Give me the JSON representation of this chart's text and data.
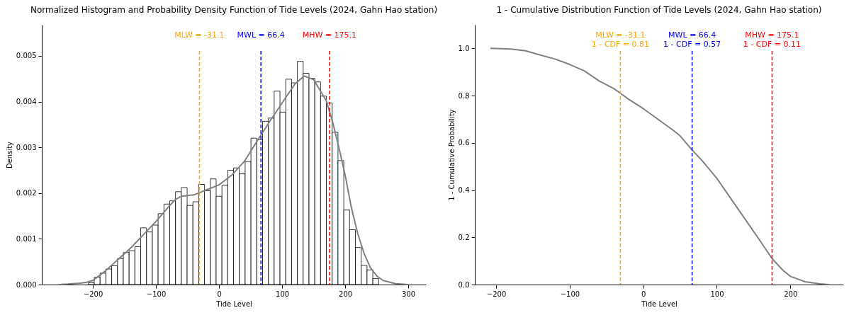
{
  "chart_data": [
    {
      "type": "histogram",
      "title": "Normalized Histogram and Probability Density Function of Tide Levels (2024, Gahn Hao station)",
      "xlabel": "Tide Level",
      "ylabel": "Density",
      "color": "#ffffff",
      "bins": [
        -207,
        -197.8,
        -188.6,
        -179.4,
        -170.2,
        -161,
        -151.8,
        -142.6,
        -133.4,
        -124.2,
        -115,
        -105.8,
        -96.6,
        -87.4,
        -78.2,
        -69,
        -59.8,
        -50.6,
        -41.4,
        -32.2,
        -23,
        -13.8,
        -4.6,
        4.6,
        13.8,
        23,
        32.2,
        41.4,
        50.6,
        59.8,
        69,
        78.2,
        87.4,
        96.6,
        105.8,
        115,
        124.2,
        133.4,
        142.6,
        151.8,
        161,
        170.2,
        179.4,
        188.6,
        197.8,
        207,
        216.2,
        225.4,
        234.6,
        243.8,
        253
      ],
      "values": [
        4e-05,
        0.00016,
        0.00025,
        0.00034,
        0.00041,
        0.00057,
        0.0007,
        0.00074,
        0.00083,
        0.00124,
        0.00115,
        0.0013,
        0.00155,
        0.00176,
        0.00183,
        0.00203,
        0.00212,
        0.00173,
        0.00181,
        0.00219,
        0.00205,
        0.00231,
        0.00193,
        0.00217,
        0.0025,
        0.00255,
        0.00242,
        0.00269,
        0.0032,
        0.00317,
        0.00357,
        0.00364,
        0.00423,
        0.00377,
        0.00449,
        0.00441,
        0.00488,
        0.00462,
        0.00451,
        0.00443,
        0.00412,
        0.00397,
        0.00333,
        0.00271,
        0.00163,
        0.0012,
        0.00081,
        0.00042,
        0.00032,
        0.00013
      ],
      "series": [
        {
          "type": "line",
          "color": "#808080",
          "x": [
            -255,
            -240,
            -220,
            -210,
            -200,
            -180,
            -160,
            -140,
            -120,
            -100,
            -80,
            -70,
            -60,
            -40,
            -20,
            0,
            20,
            40,
            60,
            80,
            100,
            120,
            135,
            150,
            170,
            180,
            190,
            200,
            210,
            220,
            230,
            240,
            250,
            260,
            280,
            300
          ],
          "values": [
            0,
            1e-05,
            3e-05,
            5e-05,
            9e-05,
            0.0003,
            0.00055,
            0.0008,
            0.00109,
            0.00138,
            0.0017,
            0.00185,
            0.00193,
            0.00196,
            0.00207,
            0.00218,
            0.00239,
            0.00269,
            0.00313,
            0.00356,
            0.00397,
            0.00438,
            0.00456,
            0.00448,
            0.00402,
            0.00356,
            0.003,
            0.00239,
            0.00167,
            0.00111,
            0.00068,
            0.00037,
            0.00019,
            9e-05,
            2e-05,
            0
          ]
        }
      ],
      "xlim": [
        -281,
        328
      ],
      "xticks": [
        -200,
        -100,
        0,
        100,
        200,
        300
      ],
      "ylim": [
        0,
        0.00568
      ],
      "yticks": [
        {
          "value": 0,
          "label": "0.000"
        },
        {
          "value": 0.001,
          "label": "0.001"
        },
        {
          "value": 0.002,
          "label": "0.002"
        },
        {
          "value": 0.003,
          "label": "0.003"
        },
        {
          "value": 0.004,
          "label": "0.004"
        },
        {
          "value": 0.005,
          "label": "0.005"
        }
      ],
      "ref_lines": [
        {
          "axis": "x",
          "value": -31.1,
          "label": "MLW = -31.1",
          "color": "#ffa500",
          "line_style": "dashed"
        },
        {
          "axis": "x",
          "value": 66.4,
          "label": "MWL = 66.4",
          "color": "#0000ff",
          "line_style": "dashed"
        },
        {
          "axis": "x",
          "value": 175.1,
          "label": "MHW = 175.1",
          "color": "#ff0000",
          "line_style": "dashed"
        }
      ],
      "grid": false
    },
    {
      "type": "line",
      "title": "1 - Cumulative Distribution Function of Tide Levels (2024, Gahn Hao station)",
      "xlabel": "Tide Level",
      "ylabel": "1 - Cumulative Probability",
      "color": "#808080",
      "x": [
        -207,
        -180,
        -160,
        -140,
        -120,
        -100,
        -80,
        -60,
        -40,
        -31.1,
        -20,
        0,
        20,
        40,
        50,
        66.4,
        80,
        100,
        120,
        140,
        160,
        175.1,
        190,
        200,
        220,
        240,
        253
      ],
      "values": [
        1,
        0.997,
        0.99,
        0.972,
        0.955,
        0.932,
        0.905,
        0.862,
        0.83,
        0.81,
        0.785,
        0.745,
        0.7,
        0.655,
        0.63,
        0.57,
        0.525,
        0.45,
        0.36,
        0.27,
        0.18,
        0.11,
        0.06,
        0.035,
        0.012,
        0.003,
        0
      ],
      "xlim": [
        -229,
        272
      ],
      "xticks": [
        -200,
        -100,
        0,
        100,
        200
      ],
      "ylim": [
        0,
        1.1
      ],
      "yticks": [
        {
          "value": 0,
          "label": "0.0"
        },
        0.2,
        0.4,
        0.6,
        0.8,
        {
          "value": 1,
          "label": "1.0"
        }
      ],
      "ref_lines": [
        {
          "axis": "x",
          "value": -31.1,
          "label": "MLW = -31.1\n1 - CDF = 0.81",
          "color": "#ffa500",
          "line_style": "dashed"
        },
        {
          "axis": "x",
          "value": 66.4,
          "label": "MWL = 66.4\n1 - CDF = 0.57",
          "color": "#0000ff",
          "line_style": "dashed"
        },
        {
          "axis": "x",
          "value": 175.1,
          "label": "MHW = 175.1\n1 - CDF = 0.11",
          "color": "#ff0000",
          "line_style": "dashed"
        }
      ],
      "grid": false
    }
  ]
}
